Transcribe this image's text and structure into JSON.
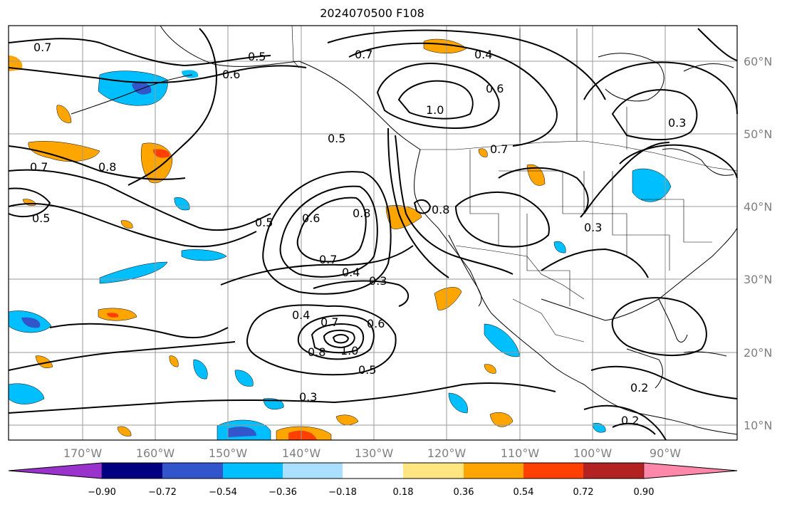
{
  "title": "2024070500 F108",
  "map": {
    "lat_ticks": [
      "60°N",
      "50°N",
      "40°N",
      "30°N",
      "20°N",
      "10°N"
    ],
    "lon_ticks": [
      "170°W",
      "160°W",
      "150°W",
      "140°W",
      "130°W",
      "120°W",
      "110°W",
      "100°W",
      "90°W"
    ],
    "contour_labels": [
      "0.7",
      "0.5",
      "0.6",
      "0.7",
      "0.4",
      "0.6",
      "1.0",
      "0.3",
      "0.5",
      "0.8",
      "0.7",
      "0.5",
      "0.6",
      "0.8",
      "0.5",
      "0.7",
      "0.4",
      "0.3",
      "0.8",
      "0.3",
      "0.4",
      "0.7",
      "0.6",
      "0.8",
      "1.0",
      "0.5",
      "0.3",
      "0.2",
      "0.2",
      "0.7"
    ],
    "shading_colors": [
      "#9933cc",
      "#000080",
      "#3355cc",
      "#00bfff",
      "#aadfff",
      "#ffffff",
      "#ffe680",
      "#ffa500",
      "#ff4000",
      "#b22222",
      "#ff88aa"
    ]
  },
  "colorbar": {
    "tick_labels": [
      "−0.90",
      "−0.72",
      "−0.54",
      "−0.36",
      "−0.18",
      "0.18",
      "0.36",
      "0.54",
      "0.72",
      "0.90"
    ],
    "colors": [
      "#9933cc",
      "#000080",
      "#3355cc",
      "#00bfff",
      "#aadfff",
      "#ffffff",
      "#ffe680",
      "#ffa500",
      "#ff4000",
      "#b22222",
      "#ff88aa"
    ]
  }
}
